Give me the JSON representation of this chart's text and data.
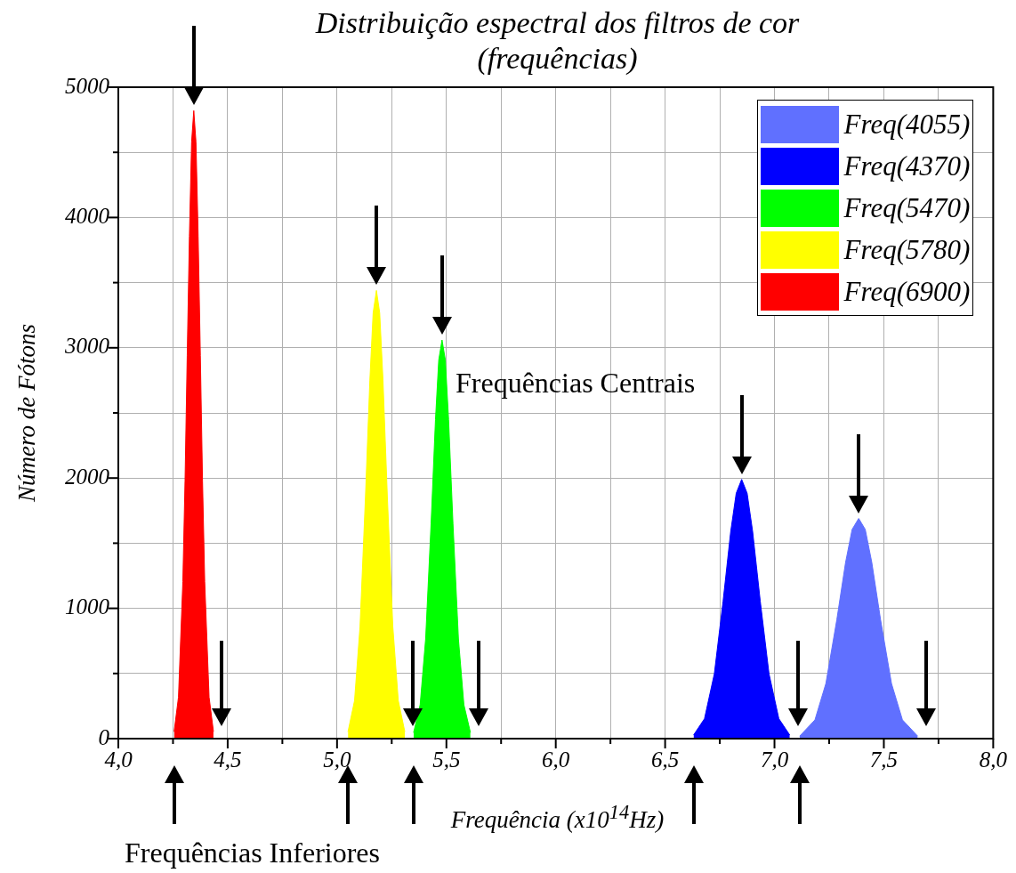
{
  "chart_data": {
    "type": "area",
    "title": "Distribuição espectral dos filtros de cor\n(frequências)",
    "xlabel": "Frequência (x10$^{14}$Hz)",
    "ylabel": "Número de Fótons",
    "annotations": [
      "Frequências Centrais",
      "Frequências Inferiores"
    ],
    "xlim": [
      4,
      8
    ],
    "xticks": [
      {
        "value": 4,
        "label": "4,0"
      },
      {
        "value": 4.25,
        "label": null
      },
      {
        "value": 4.5,
        "label": "4,5"
      },
      {
        "value": 4.75,
        "label": null
      },
      {
        "value": 5,
        "label": "5,0"
      },
      {
        "value": 5.25,
        "label": null
      },
      {
        "value": 5.5,
        "label": "5,5"
      },
      {
        "value": 5.75,
        "label": null
      },
      {
        "value": 6,
        "label": "6,0"
      },
      {
        "value": 6.25,
        "label": null
      },
      {
        "value": 6.5,
        "label": "6,5"
      },
      {
        "value": 6.75,
        "label": null
      },
      {
        "value": 7,
        "label": "7,0"
      },
      {
        "value": 7.25,
        "label": null
      },
      {
        "value": 7.5,
        "label": "7,5"
      },
      {
        "value": 7.75,
        "label": null
      },
      {
        "value": 8,
        "label": "8,0"
      }
    ],
    "ylim": [
      0,
      5000
    ],
    "yticks": [
      0,
      {
        "value": 500,
        "label": null
      },
      1000,
      {
        "value": 1500,
        "label": null
      },
      2000,
      {
        "value": 2500,
        "label": null
      },
      3000,
      {
        "value": 3500,
        "label": null
      },
      4000,
      {
        "value": 4500,
        "label": null
      },
      5000
    ],
    "grid": true,
    "legend": "top right",
    "series": [
      {
        "name": "Freq(4055)",
        "color": "#6070ff",
        "x": [
          7.115,
          7.185,
          7.235,
          7.285,
          7.325,
          7.355,
          7.385,
          7.415,
          7.445,
          7.485,
          7.535,
          7.585,
          7.655
        ],
        "values": [
          19,
          144,
          423,
          913,
          1352,
          1606,
          1690,
          1606,
          1352,
          913,
          423,
          144,
          19
        ]
      },
      {
        "name": "Freq(4370)",
        "color": "#0000ff",
        "x": [
          6.63,
          6.68,
          6.725,
          6.765,
          6.8,
          6.825,
          6.85,
          6.875,
          6.9,
          6.935,
          6.975,
          7.02,
          7.07
        ],
        "values": [
          27,
          153,
          498,
          1055,
          1592,
          1883,
          1990,
          1883,
          1592,
          1055,
          498,
          153,
          27
        ]
      },
      {
        "name": "Freq(5470)",
        "color": "#00ff00",
        "x": [
          5.35,
          5.38,
          5.405,
          5.43,
          5.45,
          5.465,
          5.48,
          5.495,
          5.51,
          5.53,
          5.555,
          5.58,
          5.61
        ],
        "values": [
          46,
          260,
          765,
          1652,
          2448,
          2907,
          3060,
          2907,
          2448,
          1652,
          765,
          260,
          46
        ]
      },
      {
        "name": "Freq(5780)",
        "color": "#ffff00",
        "x": [
          5.05,
          5.08,
          5.105,
          5.13,
          5.15,
          5.165,
          5.18,
          5.195,
          5.21,
          5.23,
          5.255,
          5.28,
          5.31
        ],
        "values": [
          52,
          292,
          860,
          1858,
          2752,
          3268,
          3440,
          3268,
          2752,
          1858,
          860,
          292,
          52
        ]
      },
      {
        "name": "Freq(6900)",
        "color": "#ff0000",
        "x": [
          4.255,
          4.275,
          4.295,
          4.305,
          4.315,
          4.325,
          4.335,
          4.345,
          4.355,
          4.365,
          4.375,
          4.385,
          4.395,
          4.415,
          4.435
        ],
        "values": [
          53,
          318,
          1205,
          1976,
          2940,
          3856,
          4579,
          4820,
          4579,
          3856,
          2940,
          1976,
          1205,
          318,
          53
        ]
      }
    ]
  }
}
